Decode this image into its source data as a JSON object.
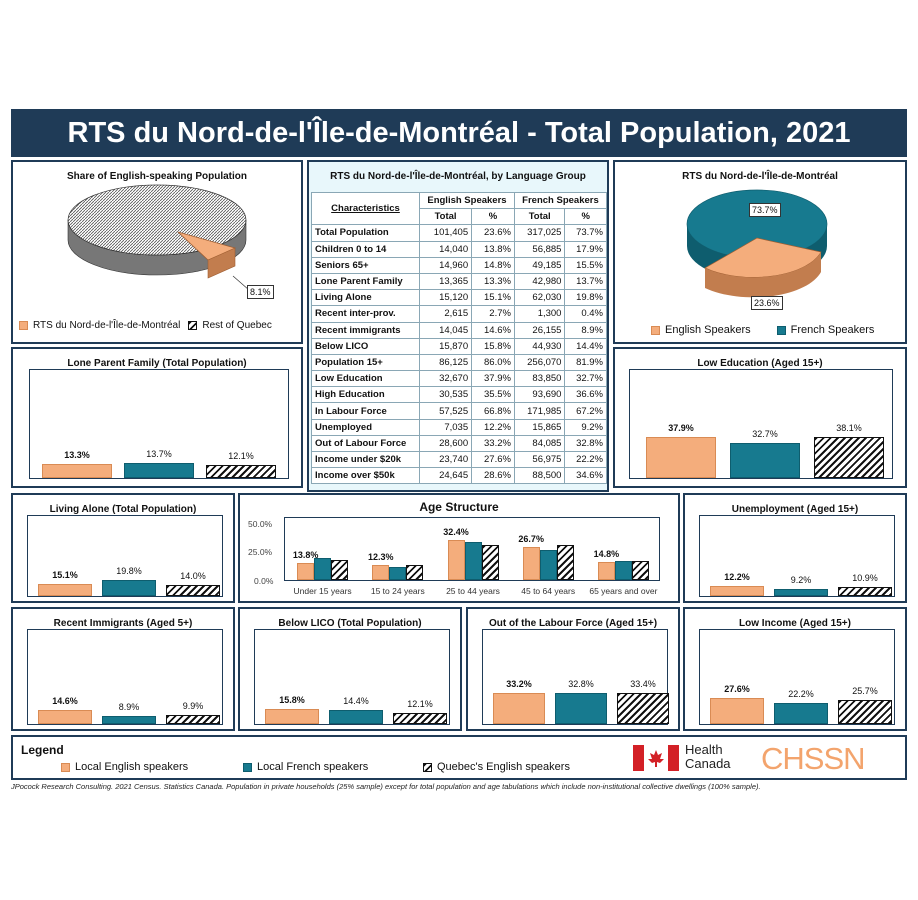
{
  "title": "RTS du Nord-de-l'Île-de-Montréal - Total Population, 2021",
  "colors": {
    "english": "#f4ad7c",
    "french": "#177a8f",
    "quebec": "hatched",
    "frame": "#1f3b57"
  },
  "pie_left": {
    "title": "Share of English-speaking Population",
    "label": "8.1%",
    "legend": [
      "RTS du Nord-de-l'Île-de-Montréal",
      "Rest of Quebec"
    ]
  },
  "pie_right": {
    "title": "RTS du Nord-de-l'Île-de-Montréal",
    "label_fr": "73.7%",
    "label_en": "23.6%",
    "legend": [
      "English Speakers",
      "French Speakers"
    ]
  },
  "table": {
    "title": "RTS du Nord-de-l'Île-de-Montréal, by Language Group",
    "col_char": "Characteristics",
    "col_en": "English Speakers",
    "col_fr": "French Speakers",
    "sub_total": "Total",
    "sub_pct": "%",
    "rows": [
      [
        "Total Population",
        "101,405",
        "23.6%",
        "317,025",
        "73.7%"
      ],
      [
        "Children 0 to 14",
        "14,040",
        "13.8%",
        "56,885",
        "17.9%"
      ],
      [
        "Seniors 65+",
        "14,960",
        "14.8%",
        "49,185",
        "15.5%"
      ],
      [
        "Lone Parent Family",
        "13,365",
        "13.3%",
        "42,980",
        "13.7%"
      ],
      [
        "Living Alone",
        "15,120",
        "15.1%",
        "62,030",
        "19.8%"
      ],
      [
        "Recent inter-prov.",
        "2,615",
        "2.7%",
        "1,300",
        "0.4%"
      ],
      [
        "Recent immigrants",
        "14,045",
        "14.6%",
        "26,155",
        "8.9%"
      ],
      [
        "Below LICO",
        "15,870",
        "15.8%",
        "44,930",
        "14.4%"
      ],
      [
        "Population 15+",
        "86,125",
        "86.0%",
        "256,070",
        "81.9%"
      ],
      [
        "Low Education",
        "32,670",
        "37.9%",
        "83,850",
        "32.7%"
      ],
      [
        "High Education",
        "30,535",
        "35.5%",
        "93,690",
        "36.6%"
      ],
      [
        "In Labour Force",
        "57,525",
        "66.8%",
        "171,985",
        "67.2%"
      ],
      [
        "Unemployed",
        "7,035",
        "12.2%",
        "15,865",
        "9.2%"
      ],
      [
        "Out of Labour Force",
        "28,600",
        "33.2%",
        "84,085",
        "32.8%"
      ],
      [
        "Income under $20k",
        "23,740",
        "27.6%",
        "56,975",
        "22.2%"
      ],
      [
        "Income over $50k",
        "24,645",
        "28.6%",
        "88,500",
        "34.6%"
      ]
    ]
  },
  "age": {
    "title": "Age Structure",
    "ticks": [
      "50.0%",
      "25.0%",
      "0.0%"
    ]
  },
  "legend": {
    "title": "Legend",
    "items": [
      "Local English speakers",
      "Local French speakers",
      "Quebec's English speakers"
    ]
  },
  "logo": {
    "health1": "Health",
    "health2": "Canada",
    "chssn": "CHSSN"
  },
  "footnote": "JPocock Research Consulting. 2021 Census. Statistics Canada. Population in private households (25% sample) except for total population and age tabulations which include non-institutional collective dwellings (100% sample).",
  "chart_data": [
    {
      "type": "pie",
      "title": "Share of English-speaking Population",
      "categories": [
        "RTS du Nord-de-l'Île-de-Montréal",
        "Rest of Quebec"
      ],
      "values": [
        8.1,
        91.9
      ],
      "labels": [
        "8.1%",
        ""
      ]
    },
    {
      "type": "pie",
      "title": "RTS du Nord-de-l'Île-de-Montréal",
      "categories": [
        "English Speakers",
        "French Speakers"
      ],
      "values": [
        23.6,
        73.7
      ]
    },
    {
      "type": "bar",
      "title": "Lone Parent Family (Total Population)",
      "values": [
        13.3,
        13.7,
        12.1
      ],
      "labels": [
        "13.3%",
        "13.7%",
        "12.1%"
      ]
    },
    {
      "type": "bar",
      "title": "Low Education (Aged 15+)",
      "values": [
        37.9,
        32.7,
        38.1
      ],
      "labels": [
        "37.9%",
        "32.7%",
        "38.1%"
      ]
    },
    {
      "type": "bar",
      "title": "Living Alone (Total Population)",
      "values": [
        15.1,
        19.8,
        14.0
      ],
      "labels": [
        "15.1%",
        "19.8%",
        "14.0%"
      ]
    },
    {
      "type": "bar",
      "title": "Unemployment (Aged 15+)",
      "values": [
        12.2,
        9.2,
        10.9
      ],
      "labels": [
        "12.2%",
        "9.2%",
        "10.9%"
      ]
    },
    {
      "type": "bar",
      "title": "Recent Immigrants (Aged 5+)",
      "values": [
        14.6,
        8.9,
        9.9
      ],
      "labels": [
        "14.6%",
        "8.9%",
        "9.9%"
      ]
    },
    {
      "type": "bar",
      "title": "Below LICO (Total Population)",
      "values": [
        15.8,
        14.4,
        12.1
      ],
      "labels": [
        "15.8%",
        "14.4%",
        "12.1%"
      ]
    },
    {
      "type": "bar",
      "title": "Out of the Labour Force (Aged 15+)",
      "values": [
        33.2,
        32.8,
        33.4
      ],
      "labels": [
        "33.2%",
        "32.8%",
        "33.4%"
      ]
    },
    {
      "type": "bar",
      "title": "Low Income (Aged 15+)",
      "values": [
        27.6,
        22.2,
        25.7
      ],
      "labels": [
        "27.6%",
        "22.2%",
        "25.7%"
      ]
    },
    {
      "type": "bar",
      "title": "Age Structure",
      "ylim": [
        0,
        50
      ],
      "categories": [
        "Under 15 years",
        "15 to 24 years",
        "25 to 44 years",
        "45 to 64 years",
        "65 years and over"
      ],
      "series": [
        {
          "name": "Local English speakers",
          "values": [
            13.8,
            12.3,
            32.4,
            26.7,
            14.8
          ],
          "labels": [
            "13.8%",
            "12.3%",
            "32.4%",
            "26.7%",
            "14.8%"
          ]
        },
        {
          "name": "Local French speakers",
          "values": [
            17.9,
            10.6,
            30.5,
            24.1,
            15.5
          ]
        },
        {
          "name": "Quebec's English speakers",
          "values": [
            16.5,
            11.9,
            28.0,
            28.5,
            15.1
          ]
        }
      ]
    }
  ]
}
